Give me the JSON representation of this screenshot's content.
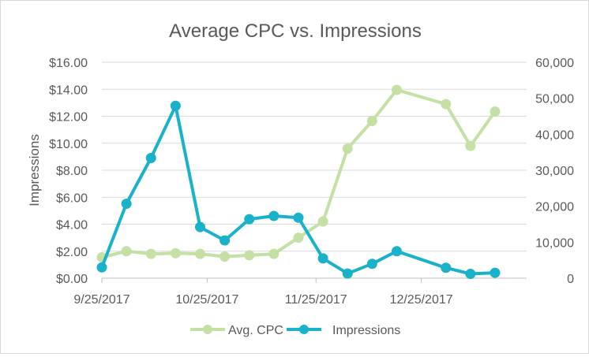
{
  "chart_data": {
    "type": "line",
    "title": "Average CPC vs. Impressions",
    "ylabel_left": "Impressions",
    "ylabel_right": "",
    "xlabel": "",
    "x_tick_labels": [
      "9/25/2017",
      "10/25/2017",
      "11/25/2017",
      "12/25/2017"
    ],
    "x_ticks": [
      "2017-09-25",
      "2017-10-25",
      "2017-11-25",
      "2017-12-25"
    ],
    "x_range": [
      "2017-09-25",
      "2018-01-24"
    ],
    "y_left": {
      "range": [
        0,
        16
      ],
      "ticks": [
        "$0.00",
        "$2.00",
        "$4.00",
        "$6.00",
        "$8.00",
        "$10.00",
        "$12.00",
        "$14.00",
        "$16.00"
      ]
    },
    "y_right": {
      "range": [
        0,
        60000
      ],
      "ticks": [
        "0",
        "10,000",
        "20,000",
        "30,000",
        "40,000",
        "50,000",
        "60,000"
      ]
    },
    "grid": true,
    "legend_position": "bottom",
    "series": [
      {
        "name": "Avg. CPC",
        "axis": "left",
        "color": "#c5e0a5",
        "points": [
          {
            "x": "2017-09-25",
            "y": 1.55
          },
          {
            "x": "2017-10-02",
            "y": 2.0
          },
          {
            "x": "2017-10-09",
            "y": 1.8
          },
          {
            "x": "2017-10-16",
            "y": 1.85
          },
          {
            "x": "2017-10-23",
            "y": 1.8
          },
          {
            "x": "2017-10-30",
            "y": 1.6
          },
          {
            "x": "2017-11-06",
            "y": 1.7
          },
          {
            "x": "2017-11-13",
            "y": 1.8
          },
          {
            "x": "2017-11-20",
            "y": 3.0
          },
          {
            "x": "2017-11-27",
            "y": 4.2
          },
          {
            "x": "2017-12-04",
            "y": 9.6
          },
          {
            "x": "2017-12-11",
            "y": 11.65
          },
          {
            "x": "2017-12-18",
            "y": 13.95
          },
          {
            "x": "2018-01-01",
            "y": 12.9
          },
          {
            "x": "2018-01-08",
            "y": 9.8
          },
          {
            "x": "2018-01-15",
            "y": 12.35
          }
        ]
      },
      {
        "name": "Impressions",
        "axis": "right",
        "color": "#1ab1ca",
        "points": [
          {
            "x": "2017-09-25",
            "y": 3000
          },
          {
            "x": "2017-10-02",
            "y": 20700
          },
          {
            "x": "2017-10-09",
            "y": 33400
          },
          {
            "x": "2017-10-16",
            "y": 47900
          },
          {
            "x": "2017-10-23",
            "y": 14200
          },
          {
            "x": "2017-10-30",
            "y": 10500
          },
          {
            "x": "2017-11-06",
            "y": 16400
          },
          {
            "x": "2017-11-13",
            "y": 17300
          },
          {
            "x": "2017-11-20",
            "y": 16800
          },
          {
            "x": "2017-11-27",
            "y": 5500
          },
          {
            "x": "2017-12-04",
            "y": 1300
          },
          {
            "x": "2017-12-11",
            "y": 4000
          },
          {
            "x": "2017-12-18",
            "y": 7500
          },
          {
            "x": "2018-01-01",
            "y": 2900
          },
          {
            "x": "2018-01-08",
            "y": 1200
          },
          {
            "x": "2018-01-15",
            "y": 1500
          }
        ]
      }
    ],
    "colors": {
      "grid": "#d9d9d9",
      "axis": "#bfbfbf",
      "text": "#595959",
      "title": "#595959"
    }
  }
}
